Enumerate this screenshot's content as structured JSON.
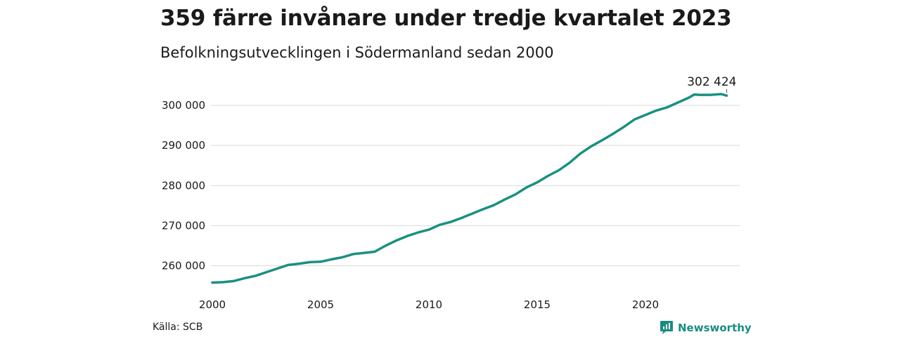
{
  "title": "359 färre invånare under tredje kvartalet 2023",
  "subtitle": "Befolkningsutvecklingen i Södermanland sedan 2000",
  "source": "Källa: SCB",
  "brand": {
    "name": "Newsworthy",
    "icon": "newsworthy-logo-icon",
    "color": "#1a8d80"
  },
  "chart_data": {
    "type": "line",
    "xlabel": "",
    "ylabel": "",
    "xlim": [
      2000,
      2023.75
    ],
    "ylim": [
      255000,
      303000
    ],
    "x_ticks": [
      2000,
      2005,
      2010,
      2015,
      2020
    ],
    "x_tick_labels": [
      "2000",
      "2005",
      "2010",
      "2015",
      "2020"
    ],
    "y_ticks": [
      260000,
      270000,
      280000,
      290000,
      300000
    ],
    "y_tick_labels": [
      "260 000",
      "270 000",
      "280 000",
      "290 000",
      "300 000"
    ],
    "grid": true,
    "line_color": "#1a9080",
    "end_label": "302 424",
    "series": [
      {
        "x": [
          2000,
          2000.5,
          2001,
          2001.5,
          2002,
          2002.5,
          2003,
          2003.5,
          2004,
          2004.5,
          2005,
          2005.5,
          2006,
          2006.5,
          2007,
          2007.5,
          2008,
          2008.5,
          2009,
          2009.5,
          2010,
          2010.5,
          2011,
          2011.5,
          2012,
          2012.5,
          2013,
          2013.5,
          2014,
          2014.5,
          2015,
          2015.5,
          2016,
          2016.5,
          2017,
          2017.5,
          2018,
          2018.5,
          2019,
          2019.5,
          2020,
          2020.5,
          2021,
          2021.5,
          2022,
          2022.25,
          2022.5,
          2023,
          2023.5,
          2023.75
        ],
        "values": [
          255800,
          255900,
          256200,
          256900,
          257500,
          258400,
          259300,
          260200,
          260500,
          260900,
          261000,
          261600,
          262100,
          262900,
          263200,
          263500,
          265000,
          266300,
          267400,
          268300,
          269000,
          270200,
          270900,
          271900,
          273000,
          274100,
          275100,
          276500,
          277800,
          279500,
          280800,
          282400,
          283800,
          285700,
          288000,
          289800,
          291300,
          292900,
          294600,
          296500,
          297600,
          298700,
          299500,
          300700,
          301900,
          302700,
          302600,
          302600,
          302800,
          302424
        ]
      }
    ]
  }
}
